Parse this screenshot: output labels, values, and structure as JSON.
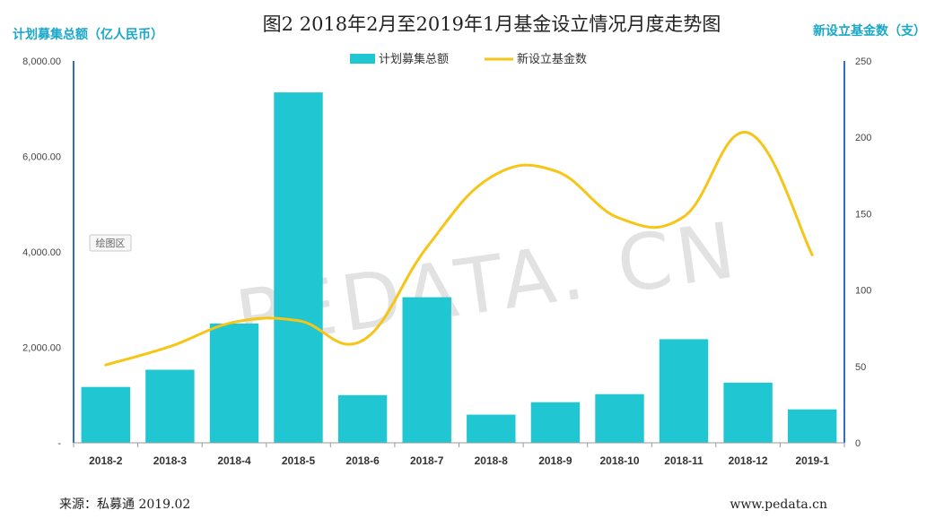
{
  "chart_data": {
    "type": "bar+line",
    "title": "图2  2018年2月至2019年1月基金设立情况月度走势图",
    "ylabel_left": "计划募集总额（亿人民币）",
    "ylabel_right": "新设立基金数（支）",
    "categories": [
      "2018-2",
      "2018-3",
      "2018-4",
      "2018-5",
      "2018-6",
      "2018-7",
      "2018-8",
      "2018-9",
      "2018-10",
      "2018-11",
      "2018-12",
      "2019-1"
    ],
    "left_ticks": [
      "-",
      "2,000.00",
      "4,000.00",
      "6,000.00",
      "8,000.00"
    ],
    "right_ticks": [
      "0",
      "50",
      "100",
      "150",
      "200",
      "250"
    ],
    "ylim_left": [
      0,
      8000
    ],
    "ylim_right": [
      0,
      250
    ],
    "legend_position": "top-center",
    "series": [
      {
        "name": "计划募集总额",
        "type": "bar",
        "axis": "left",
        "color": "#20c6d2",
        "values": [
          1170,
          1530,
          2500,
          7340,
          1000,
          3050,
          590,
          850,
          1020,
          2170,
          1260,
          700
        ]
      },
      {
        "name": "新设立基金数",
        "type": "line",
        "axis": "right",
        "color": "#f5c518",
        "values": [
          51,
          63,
          79,
          80,
          67,
          128,
          174,
          178,
          147,
          148,
          203,
          123
        ]
      }
    ]
  },
  "watermark": "PEDATA. CN",
  "area_tag": "绘图区",
  "footer": {
    "source": "来源：私募通 2019.02",
    "site": "www.pedata.cn"
  }
}
